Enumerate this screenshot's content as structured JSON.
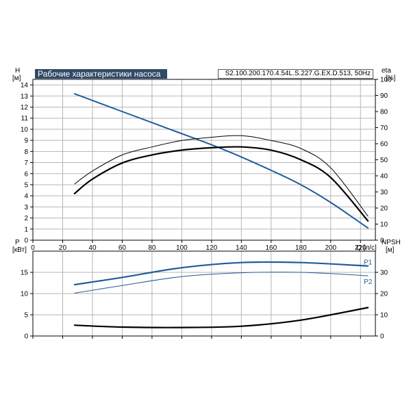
{
  "title": "Рабочие характеристики насоса",
  "model": "S2.100.200.170.4.54L.S.227.G.EX.D.513, 50Hz",
  "colors": {
    "blue": "#1f5c99",
    "black": "#000000",
    "grid": "#b5b5b5",
    "title_bg": "#2f4a68"
  },
  "chart_data": [
    {
      "type": "line",
      "name": "head-efficiency",
      "xlabel": "Q [л/с]",
      "ylabel_left": "H",
      "ylabel_left_unit": "[м]",
      "ylabel_right": "eta",
      "ylabel_right_unit": "[%]",
      "xlim": [
        0,
        230
      ],
      "ylim_left": [
        0,
        14.5
      ],
      "ylim_right": [
        0,
        100
      ],
      "x_ticks": [
        0,
        20,
        40,
        60,
        80,
        100,
        120,
        140,
        160,
        180,
        200,
        220
      ],
      "y_left_ticks": [
        0,
        1,
        2,
        3,
        4,
        5,
        6,
        7,
        8,
        9,
        10,
        11,
        12,
        13,
        14
      ],
      "y_right_ticks": [
        0,
        10,
        20,
        30,
        40,
        50,
        60,
        70,
        80,
        90,
        100
      ],
      "grid": true,
      "series": [
        {
          "key": "H",
          "axis": "left",
          "color": "#1f5c99",
          "width": 2,
          "x": [
            28,
            60,
            90,
            120,
            140,
            160,
            180,
            200,
            225
          ],
          "y": [
            13.2,
            11.6,
            10.1,
            8.6,
            7.5,
            6.3,
            5.0,
            3.4,
            1.1
          ]
        },
        {
          "key": "eta1",
          "axis": "right",
          "color": "#000000",
          "width": 1,
          "x": [
            28,
            40,
            60,
            80,
            100,
            120,
            140,
            160,
            180,
            200,
            225
          ],
          "y": [
            35,
            43,
            53,
            58,
            62,
            64,
            65,
            62,
            57,
            45,
            15
          ]
        },
        {
          "key": "eta2",
          "axis": "right",
          "color": "#000000",
          "width": 2.2,
          "x": [
            28,
            40,
            60,
            80,
            100,
            120,
            140,
            160,
            180,
            200,
            225
          ],
          "y": [
            29,
            38,
            48,
            53,
            56,
            57.5,
            58,
            56,
            50,
            39,
            12
          ]
        }
      ]
    },
    {
      "type": "line",
      "name": "power-npsh",
      "ylabel_left": "P",
      "ylabel_left_unit": "[кВт]",
      "ylabel_right": "NPSH",
      "ylabel_right_unit": "[м]",
      "xlim": [
        0,
        230
      ],
      "ylim_left": [
        0,
        20
      ],
      "ylim_right": [
        0,
        40
      ],
      "y_left_ticks": [
        0,
        5,
        10,
        15
      ],
      "y_right_ticks": [
        0,
        10,
        20,
        30
      ],
      "grid": true,
      "series": [
        {
          "key": "P1",
          "axis": "left",
          "color": "#1f5c99",
          "width": 2.2,
          "label": "P1",
          "x": [
            28,
            60,
            100,
            140,
            180,
            225
          ],
          "y": [
            12.1,
            13.8,
            16.1,
            17.3,
            17.3,
            16.5
          ]
        },
        {
          "key": "P2",
          "axis": "left",
          "color": "#1f5c99",
          "width": 1,
          "label": "P2",
          "x": [
            28,
            60,
            100,
            140,
            180,
            225
          ],
          "y": [
            10.1,
            11.9,
            14.0,
            14.9,
            15.0,
            14.2
          ]
        },
        {
          "key": "NPSH",
          "axis": "right",
          "color": "#000000",
          "width": 2.2,
          "x": [
            28,
            60,
            100,
            140,
            180,
            225
          ],
          "y": [
            5.1,
            4.2,
            4.0,
            4.6,
            7.5,
            13.4
          ]
        }
      ]
    }
  ]
}
